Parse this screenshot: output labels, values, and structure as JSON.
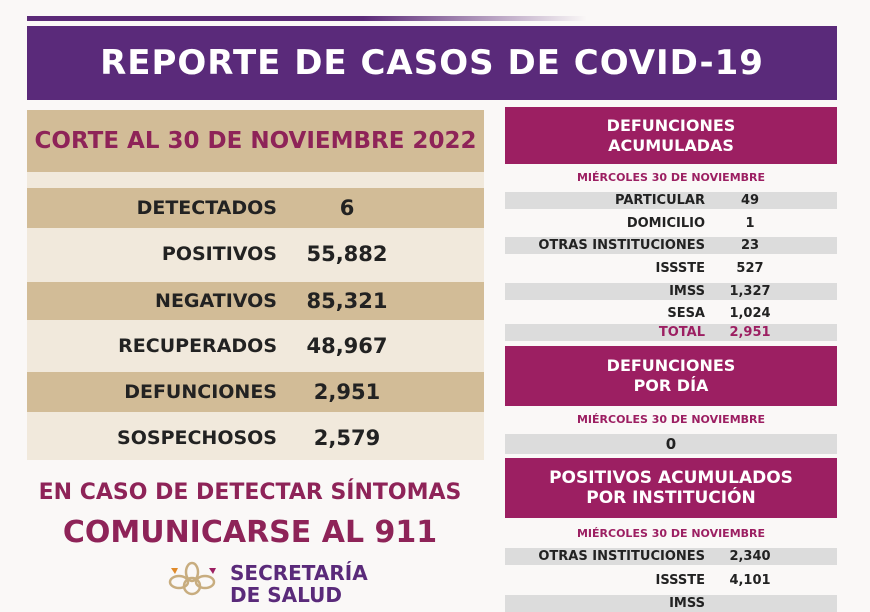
{
  "header": {
    "title": "REPORTE DE CASOS DE COVID-19"
  },
  "summary": {
    "cutoff": "CORTE AL 30 DE NOVIEMBRE 2022",
    "rows": [
      {
        "label": "DETECTADOS",
        "value": "6"
      },
      {
        "label": "POSITIVOS",
        "value": "55,882"
      },
      {
        "label": "NEGATIVOS",
        "value": "85,321"
      },
      {
        "label": "RECUPERADOS",
        "value": "48,967"
      },
      {
        "label": "DEFUNCIONES",
        "value": "2,951"
      },
      {
        "label": "SOSPECHOSOS",
        "value": "2,579"
      }
    ]
  },
  "deaths_cumulative": {
    "title_1": "DEFUNCIONES",
    "title_2": "ACUMULADAS",
    "date": "MIÉRCOLES 30 DE NOVIEMBRE",
    "rows": [
      {
        "label": "PARTICULAR",
        "value": "49"
      },
      {
        "label": "DOMICILIO",
        "value": "1"
      },
      {
        "label": "OTRAS INSTITUCIONES",
        "value": "23"
      },
      {
        "label": "ISSSTE",
        "value": "527"
      },
      {
        "label": "IMSS",
        "value": "1,327"
      },
      {
        "label": "SESA",
        "value": "1,024"
      },
      {
        "label": "TOTAL",
        "value": "2,951"
      }
    ]
  },
  "deaths_daily": {
    "title_1": "DEFUNCIONES",
    "title_2": "POR DÍA",
    "date": "MIÉRCOLES 30 DE NOVIEMBRE",
    "value": "0"
  },
  "positives_by_institution": {
    "title_1": "POSITIVOS ACUMULADOS",
    "title_2": "POR INSTITUCIÓN",
    "date": "MIÉRCOLES 30 DE NOVIEMBRE",
    "rows": [
      {
        "label": "OTRAS INSTITUCIONES",
        "value": "2,340"
      },
      {
        "label": "ISSSTE",
        "value": "4,101"
      },
      {
        "label": "IMSS",
        "value": ""
      }
    ]
  },
  "footer": {
    "cta_line1": "EN CASO DE DETECTAR SÍNTOMAS",
    "cta_line2": "COMUNICARSE AL 911",
    "org_line1": "SECRETARÍA",
    "org_line2": "DE SALUD"
  },
  "colors": {
    "purple": "#5a2a7a",
    "magenta": "#9c1f62",
    "tan": "#d2bc97"
  }
}
